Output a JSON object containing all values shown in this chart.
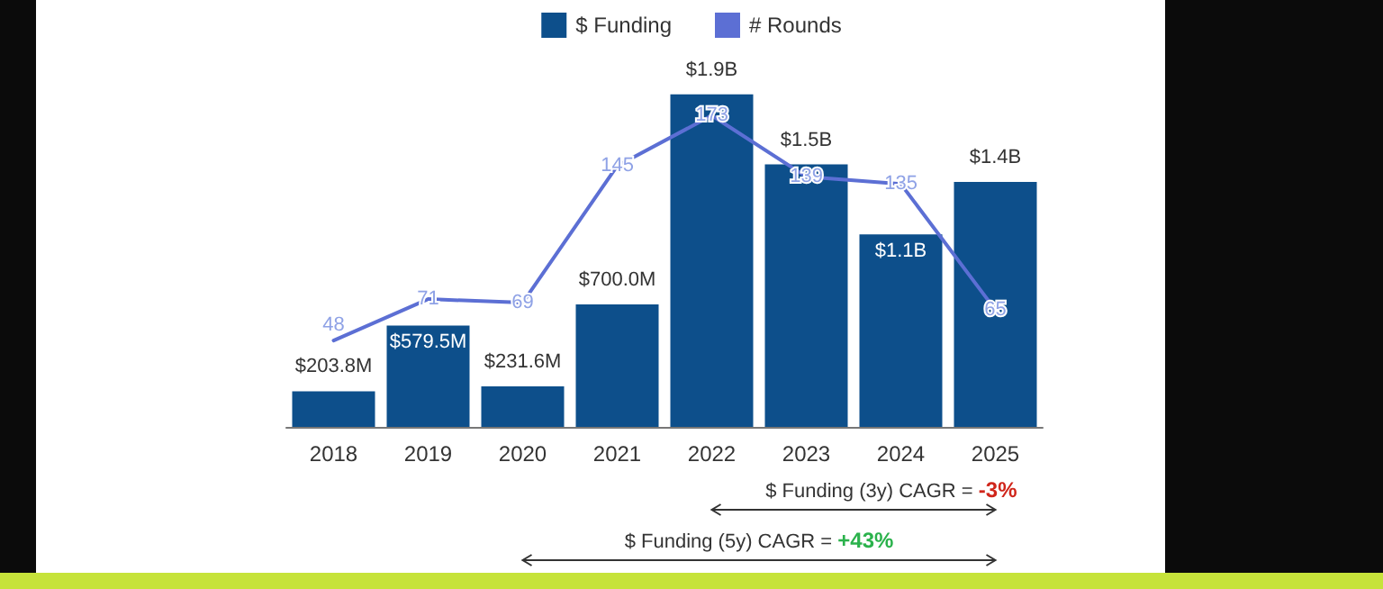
{
  "chart_data": {
    "type": "bar",
    "categories": [
      "2018",
      "2019",
      "2020",
      "2021",
      "2022",
      "2023",
      "2024",
      "2025"
    ],
    "series": [
      {
        "name": "$ Funding",
        "color": "#0d4f8b",
        "values": [
          203800000,
          579500000,
          231600000,
          700000000,
          1900000000,
          1500000000,
          1100000000,
          1400000000
        ],
        "value_labels": [
          "$203.8M",
          "$579.5M",
          "$231.6M",
          "$700.0M",
          "$1.9B",
          "$1.5B",
          "$1.1B",
          "$1.4B"
        ]
      },
      {
        "name": "# Rounds",
        "type": "line",
        "axis": "y2",
        "color": "#5c6fd4",
        "values": [
          48,
          71,
          69,
          145,
          173,
          139,
          135,
          65
        ],
        "value_labels": [
          "48",
          "71",
          "69",
          "145",
          "173",
          "139",
          "135",
          "65"
        ]
      }
    ],
    "tick_labels": "x",
    "marker": "none",
    "line_style": "solid",
    "grid": false,
    "legend": "top",
    "annotations": [
      "$ Funding (3y) CAGR = -3%",
      "$ Funding (5y) CAGR = +43%"
    ]
  }
}
